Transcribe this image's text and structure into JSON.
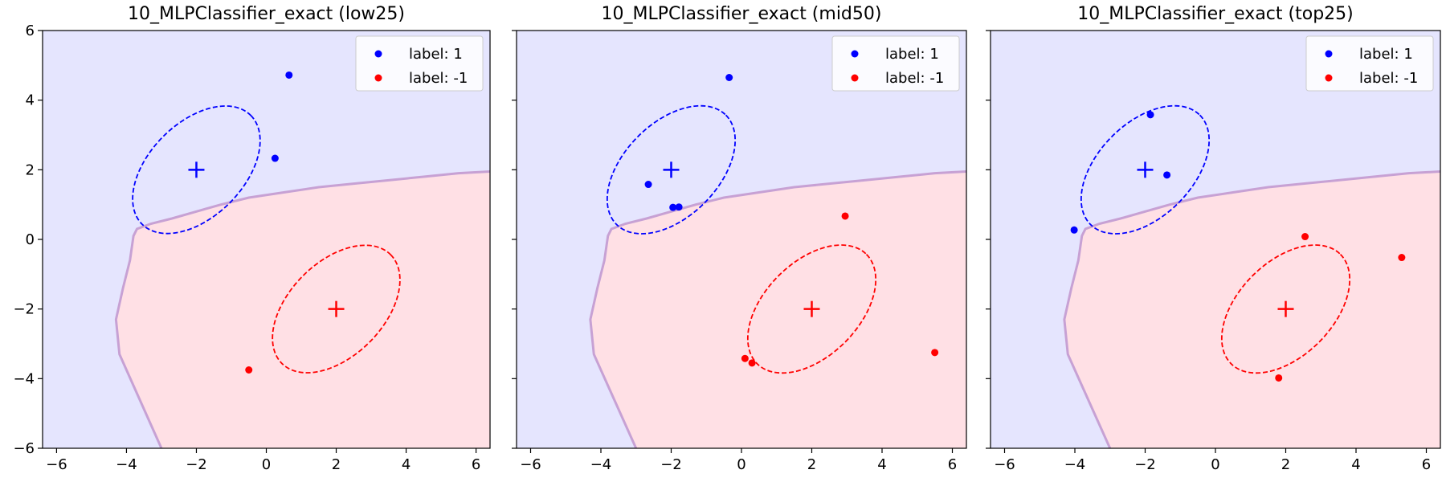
{
  "chart_data": [
    {
      "type": "scatter",
      "title": "10_MLPClassifier_exact (low25)",
      "xlim": [
        -6.4,
        6.4
      ],
      "ylim": [
        -6,
        6
      ],
      "xticks": [
        -6,
        -4,
        -2,
        0,
        2,
        4,
        6
      ],
      "yticks": [
        -6,
        -4,
        -2,
        0,
        2,
        4,
        6
      ],
      "xtick_labels": [
        "−6",
        "−4",
        "−2",
        "0",
        "2",
        "4",
        "6"
      ],
      "ytick_labels": [
        "−6",
        "−4",
        "−2",
        "0",
        "2",
        "4",
        "6"
      ],
      "show_ytick_labels": true,
      "grid": false,
      "legend_position": "top-right",
      "series": [
        {
          "name": "label: 1",
          "color": "#0000ff",
          "points": [
            [
              0.65,
              4.72
            ],
            [
              0.25,
              2.33
            ]
          ]
        },
        {
          "name": "label: -1",
          "color": "#ff0000",
          "points": [
            [
              -0.5,
              -3.75
            ]
          ]
        }
      ],
      "centers": [
        {
          "x": -2,
          "y": 2,
          "color": "#0000ff"
        },
        {
          "x": 2,
          "y": -2,
          "color": "#ff0000"
        }
      ]
    },
    {
      "type": "scatter",
      "title": "10_MLPClassifier_exact (mid50)",
      "xlim": [
        -6.4,
        6.4
      ],
      "ylim": [
        -6,
        6
      ],
      "xticks": [
        -6,
        -4,
        -2,
        0,
        2,
        4,
        6
      ],
      "yticks": [
        -6,
        -4,
        -2,
        0,
        2,
        4,
        6
      ],
      "xtick_labels": [
        "−6",
        "−4",
        "−2",
        "0",
        "2",
        "4",
        "6"
      ],
      "ytick_labels": [
        "",
        "",
        "",
        "",
        "",
        "",
        ""
      ],
      "show_ytick_labels": false,
      "grid": false,
      "legend_position": "top-right",
      "series": [
        {
          "name": "label: 1",
          "color": "#0000ff",
          "points": [
            [
              -0.35,
              4.65
            ],
            [
              -2.65,
              1.58
            ],
            [
              -1.95,
              0.92
            ],
            [
              -1.78,
              0.93
            ]
          ]
        },
        {
          "name": "label: -1",
          "color": "#ff0000",
          "points": [
            [
              2.95,
              0.67
            ],
            [
              0.1,
              -3.42
            ],
            [
              0.3,
              -3.55
            ],
            [
              5.5,
              -3.25
            ]
          ]
        }
      ],
      "centers": [
        {
          "x": -2,
          "y": 2,
          "color": "#0000ff"
        },
        {
          "x": 2,
          "y": -2,
          "color": "#ff0000"
        }
      ]
    },
    {
      "type": "scatter",
      "title": "10_MLPClassifier_exact (top25)",
      "xlim": [
        -6.4,
        6.4
      ],
      "ylim": [
        -6,
        6
      ],
      "xticks": [
        -6,
        -4,
        -2,
        0,
        2,
        4,
        6
      ],
      "yticks": [
        -6,
        -4,
        -2,
        0,
        2,
        4,
        6
      ],
      "xtick_labels": [
        "−6",
        "−4",
        "−2",
        "0",
        "2",
        "4",
        "6"
      ],
      "ytick_labels": [
        "",
        "",
        "",
        "",
        "",
        "",
        ""
      ],
      "show_ytick_labels": false,
      "grid": false,
      "legend_position": "top-right",
      "series": [
        {
          "name": "label: 1",
          "color": "#0000ff",
          "points": [
            [
              -1.85,
              3.58
            ],
            [
              -1.38,
              1.85
            ],
            [
              -4.02,
              0.27
            ]
          ]
        },
        {
          "name": "label: -1",
          "color": "#ff0000",
          "points": [
            [
              2.55,
              0.08
            ],
            [
              5.3,
              -0.52
            ],
            [
              1.8,
              -3.98
            ]
          ]
        }
      ],
      "centers": [
        {
          "x": -2,
          "y": 2,
          "color": "#0000ff"
        },
        {
          "x": 2,
          "y": -2,
          "color": "#ff0000"
        }
      ]
    }
  ],
  "shared": {
    "class_colors": {
      "positive": "#0000ff",
      "negative": "#ff0000"
    },
    "region_colors": {
      "positive": "#e5e5fe",
      "negative": "#ffe0e5"
    },
    "boundary_color": "#c7a1d4",
    "ellipses": [
      {
        "cx": -2,
        "cy": 2,
        "rx": 2.2,
        "ry": 1.35,
        "angle_deg": 45,
        "color": "#0000ff"
      },
      {
        "cx": 2,
        "cy": -2,
        "rx": 2.2,
        "ry": 1.35,
        "angle_deg": 45,
        "color": "#ff0000"
      }
    ],
    "decision_boundary": [
      [
        -3.0,
        -6.0
      ],
      [
        -3.4,
        -5.1
      ],
      [
        -3.8,
        -4.2
      ],
      [
        -4.2,
        -3.3
      ],
      [
        -4.3,
        -2.3
      ],
      [
        -4.1,
        -1.4
      ],
      [
        -3.9,
        -0.6
      ],
      [
        -3.8,
        0.1
      ],
      [
        -3.7,
        0.3
      ],
      [
        -3.3,
        0.45
      ],
      [
        -2.7,
        0.6
      ],
      [
        -2.0,
        0.8
      ],
      [
        -1.3,
        1.0
      ],
      [
        -0.5,
        1.2
      ],
      [
        0.5,
        1.35
      ],
      [
        1.5,
        1.5
      ],
      [
        2.5,
        1.6
      ],
      [
        3.5,
        1.7
      ],
      [
        4.5,
        1.8
      ],
      [
        5.5,
        1.9
      ],
      [
        6.4,
        1.95
      ]
    ]
  }
}
